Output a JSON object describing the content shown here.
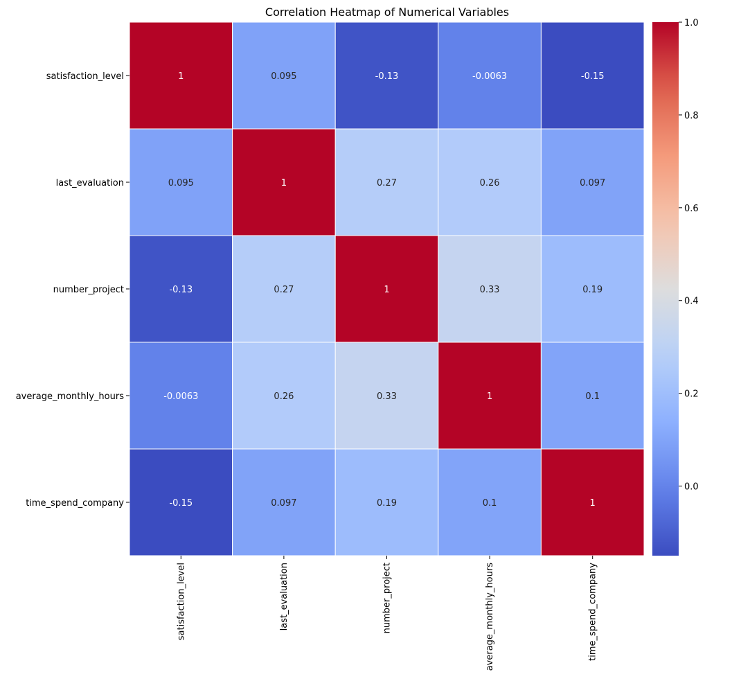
{
  "chart_data": {
    "type": "heatmap",
    "title": "Correlation Heatmap of Numerical Variables",
    "xlabel": "",
    "ylabel": "",
    "row_labels": [
      "satisfaction_level",
      "last_evaluation",
      "number_project",
      "average_monthly_hours",
      "time_spend_company"
    ],
    "col_labels": [
      "satisfaction_level",
      "last_evaluation",
      "number_project",
      "average_monthly_hours",
      "time_spend_company"
    ],
    "values": [
      [
        1,
        0.095,
        -0.13,
        -0.0063,
        -0.15
      ],
      [
        0.095,
        1,
        0.27,
        0.26,
        0.097
      ],
      [
        -0.13,
        0.27,
        1,
        0.33,
        0.19
      ],
      [
        -0.0063,
        0.26,
        0.33,
        1,
        0.1
      ],
      [
        -0.15,
        0.097,
        0.19,
        0.1,
        1
      ]
    ],
    "annotations": [
      [
        "1",
        "0.095",
        "-0.13",
        "-0.0063",
        "-0.15"
      ],
      [
        "0.095",
        "1",
        "0.27",
        "0.26",
        "0.097"
      ],
      [
        "-0.13",
        "0.27",
        "1",
        "0.33",
        "0.19"
      ],
      [
        "-0.0063",
        "0.26",
        "0.33",
        "1",
        "0.1"
      ],
      [
        "-0.15",
        "0.097",
        "0.19",
        "0.1",
        "1"
      ]
    ],
    "colormap": "coolwarm",
    "vmin": -0.15,
    "vmax": 1.0,
    "colorbar_ticks": [
      {
        "value": 1.0,
        "label": "1.0"
      },
      {
        "value": 0.8,
        "label": "0.8"
      },
      {
        "value": 0.6,
        "label": "0.6"
      },
      {
        "value": 0.4,
        "label": "0.4"
      },
      {
        "value": 0.2,
        "label": "0.2"
      },
      {
        "value": 0.0,
        "label": "0.0"
      }
    ],
    "legend": "colorbar-right",
    "grid": false
  },
  "colors": {
    "cell_border": "#ffffff",
    "text_dark": "#262626",
    "text_light": "#ffffff",
    "axis": "#000000"
  }
}
